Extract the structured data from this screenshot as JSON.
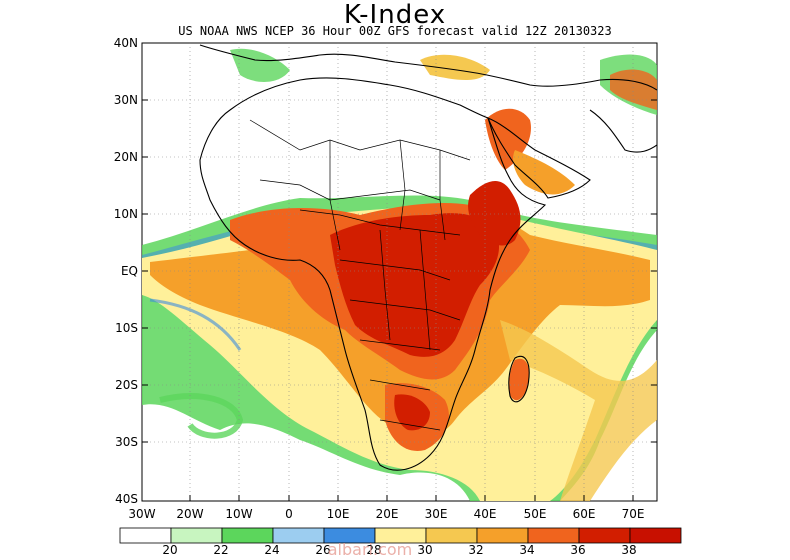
{
  "title": "K-Index",
  "subtitle": "US NOAA NWS NCEP 36 Hour 00Z GFS forecast valid 12Z 20130323",
  "lat_labels": [
    "40N",
    "30N",
    "20N",
    "10N",
    "EQ",
    "10S",
    "20S",
    "30S",
    "40S"
  ],
  "lon_labels": [
    "30W",
    "20W",
    "10W",
    "0",
    "10E",
    "20E",
    "30E",
    "40E",
    "50E",
    "60E",
    "70E"
  ],
  "legend": {
    "labels": [
      "20",
      "22",
      "24",
      "26",
      "28",
      "30",
      "32",
      "34",
      "36",
      "38"
    ],
    "colors": [
      "#ffffff",
      "#c8f5c0",
      "#5cd65c",
      "#9ccdf0",
      "#3c8ce0",
      "#fff09a",
      "#f5c850",
      "#f5a02a",
      "#f0641e",
      "#d21e00",
      "#c81000"
    ]
  },
  "watermark": "albari.com"
}
